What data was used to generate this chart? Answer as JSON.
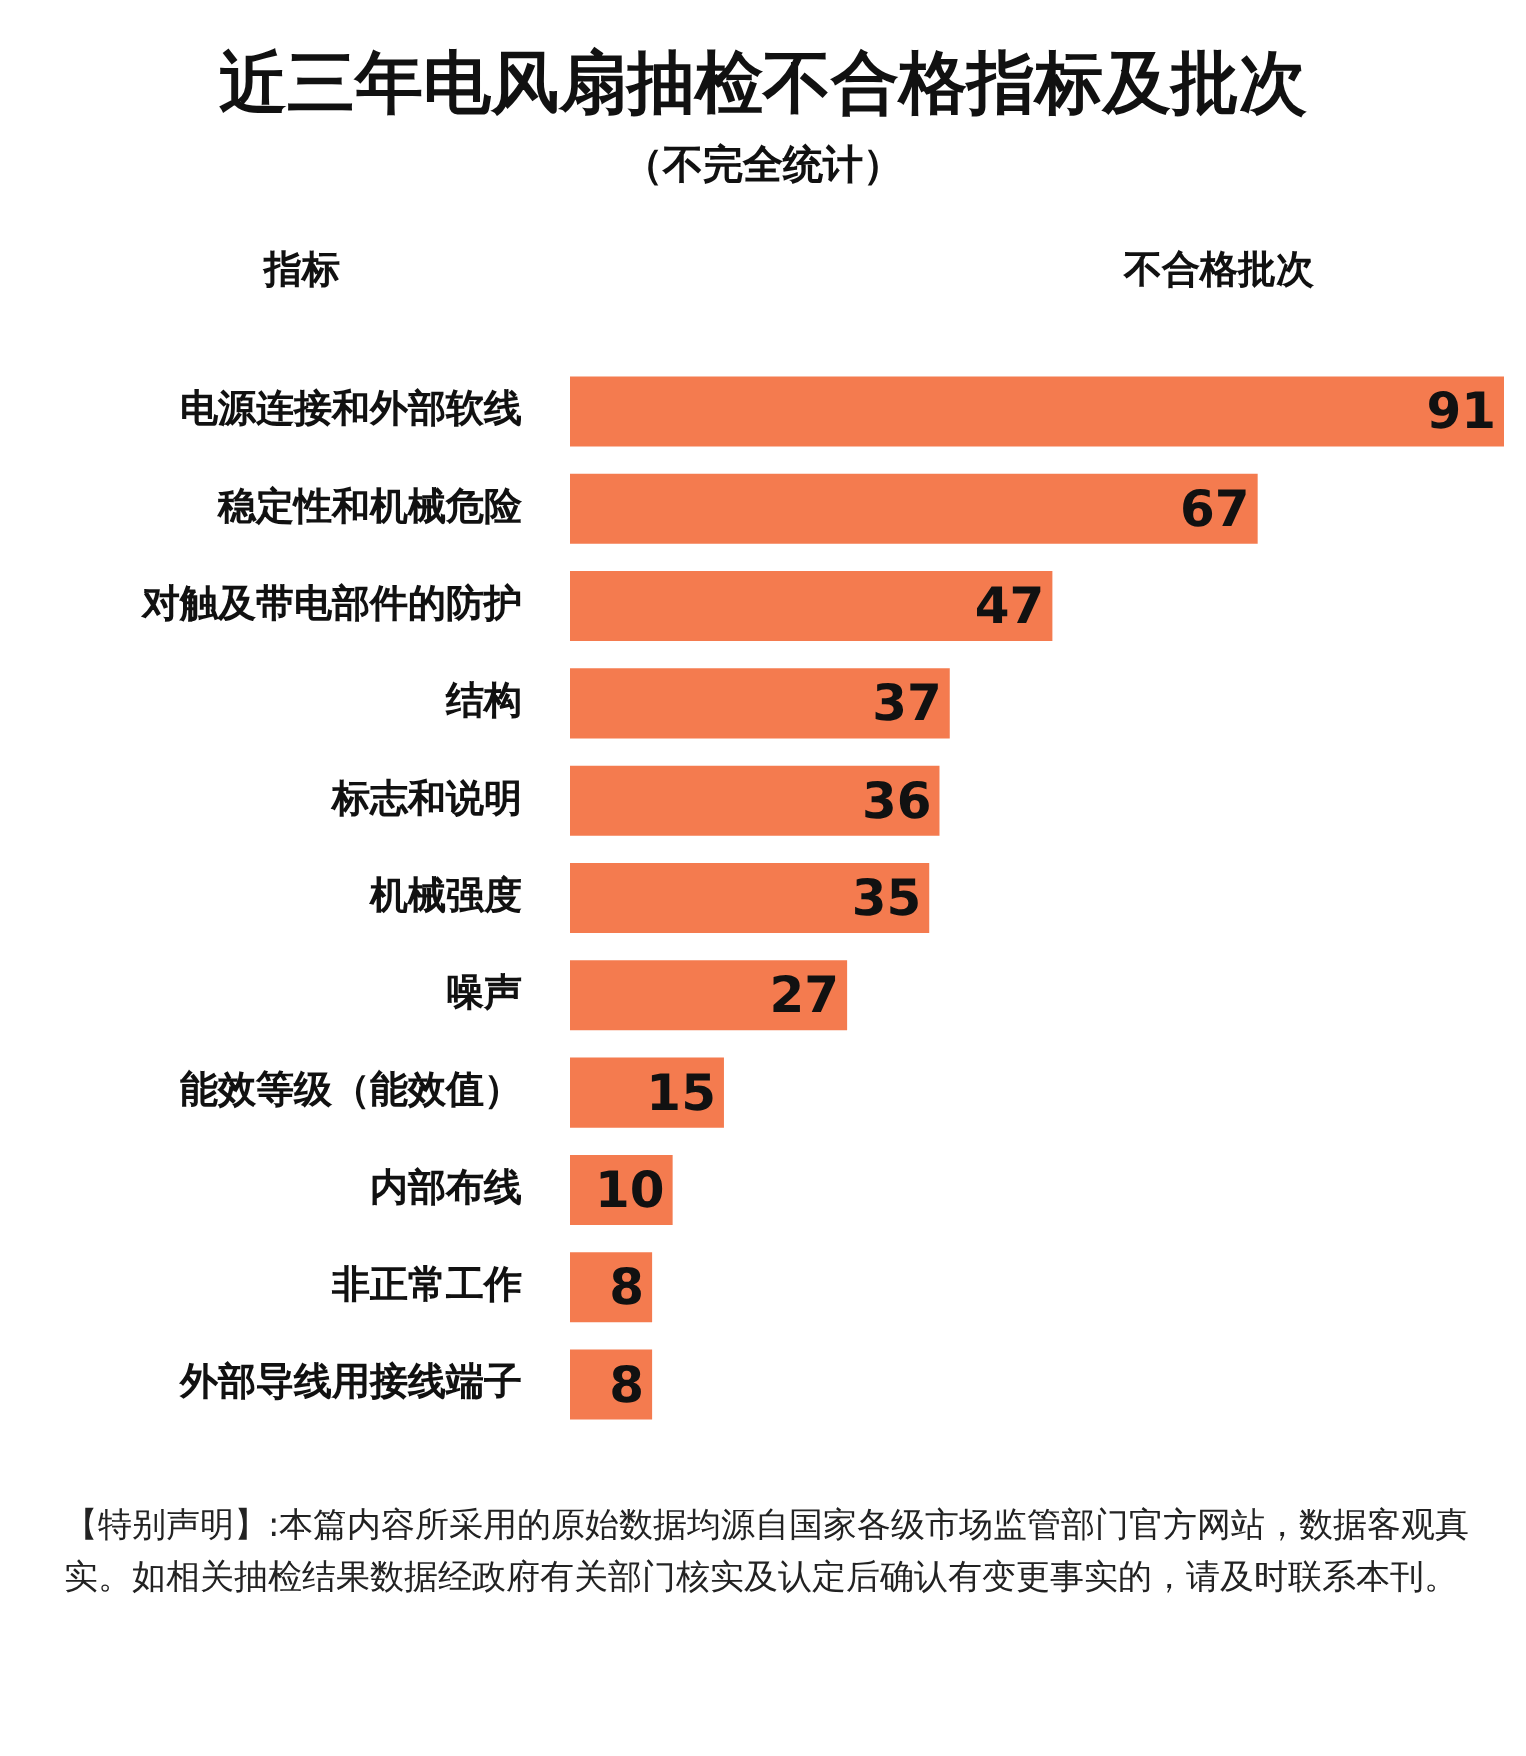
{
  "chart_data": {
    "type": "bar",
    "orientation": "horizontal",
    "title": "近三年电风扇抽检不合格指标及批次",
    "subtitle": "（不完全统计）",
    "ylabel": "指标",
    "xlabel": "不合格批次",
    "categories": [
      "电源连接和外部软线",
      "稳定性和机械危险",
      "对触及带电部件的防护",
      "结构",
      "标志和说明",
      "机械强度",
      "噪声",
      "能效等级（能效值）",
      "内部布线",
      "非正常工作",
      "外部导线用接线端子"
    ],
    "values": [
      91,
      67,
      47,
      37,
      36,
      35,
      27,
      15,
      10,
      8,
      8
    ],
    "color": "#f47b4f",
    "data_labels": true,
    "annotations": [
      "【特别声明】:本篇内容所采用的原始数据均源自国家各级市场监管部门官方网站，数据客观真实。如相关抽检结果数据经政府有关部门核实及认定后确认有变更事实的，请及时联系本刊。"
    ]
  }
}
